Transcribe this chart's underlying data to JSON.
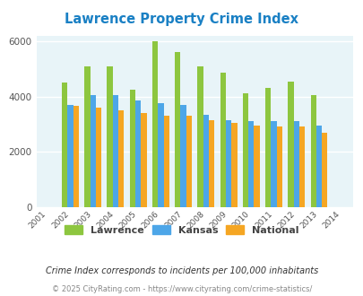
{
  "title": "Lawrence Property Crime Index",
  "years": [
    2001,
    2002,
    2003,
    2004,
    2005,
    2006,
    2007,
    2008,
    2009,
    2010,
    2011,
    2012,
    2013,
    2014
  ],
  "lawrence": [
    null,
    4500,
    5100,
    5100,
    4250,
    6000,
    5600,
    5100,
    4850,
    4100,
    4300,
    4550,
    4050,
    null
  ],
  "kansas": [
    null,
    3700,
    4050,
    4050,
    3850,
    3750,
    3700,
    3350,
    3150,
    3100,
    3100,
    3100,
    2950,
    null
  ],
  "national": [
    null,
    3650,
    3600,
    3500,
    3400,
    3300,
    3300,
    3150,
    3050,
    2950,
    2900,
    2900,
    2700,
    null
  ],
  "lawrence_color": "#8dc63f",
  "kansas_color": "#4da6e8",
  "national_color": "#f5a623",
  "bg_color": "#e8f4f8",
  "ylim": [
    0,
    6200
  ],
  "yticks": [
    0,
    2000,
    4000,
    6000
  ],
  "grid_color": "#ffffff",
  "title_color": "#1a80c4",
  "footnote1": "Crime Index corresponds to incidents per 100,000 inhabitants",
  "footnote2": "© 2025 CityRating.com - https://www.cityrating.com/crime-statistics/",
  "legend_labels": [
    "Lawrence",
    "Kansas",
    "National"
  ]
}
